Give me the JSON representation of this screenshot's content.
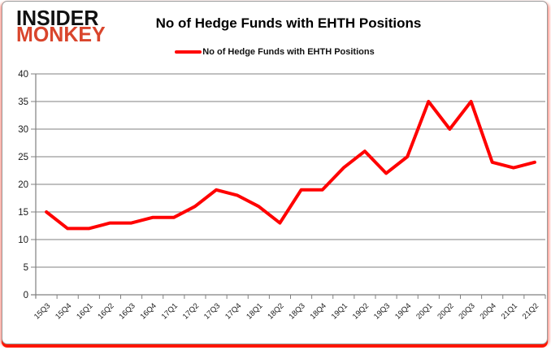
{
  "logo": {
    "line1": "INSIDER",
    "line2": "MONKEY",
    "line1_color": "#111111",
    "line2_color": "#d9452c"
  },
  "header": {
    "title": "No of Hedge Funds with EHTH Positions"
  },
  "legend": {
    "label": "No of Hedge Funds with EHTH Positions",
    "line_color": "#ff0000"
  },
  "chart_data": {
    "type": "line",
    "title": "No of Hedge Funds with EHTH Positions",
    "categories": [
      "15Q3",
      "15Q4",
      "16Q1",
      "16Q2",
      "16Q3",
      "16Q4",
      "17Q1",
      "17Q2",
      "17Q3",
      "17Q4",
      "18Q1",
      "18Q2",
      "18Q3",
      "18Q4",
      "19Q1",
      "19Q2",
      "19Q3",
      "19Q4",
      "20Q1",
      "20Q2",
      "20Q3",
      "20Q4",
      "21Q1",
      "21Q2"
    ],
    "series": [
      {
        "name": "No of Hedge Funds with EHTH Positions",
        "color": "#ff0000",
        "values": [
          15,
          12,
          12,
          13,
          13,
          14,
          14,
          16,
          19,
          18,
          16,
          13,
          19,
          19,
          23,
          26,
          22,
          25,
          35,
          30,
          35,
          24,
          23,
          24
        ]
      }
    ],
    "xlabel": "",
    "ylabel": "",
    "ylim": [
      0,
      40
    ],
    "ytick_step": 5,
    "grid": true,
    "legend_position": "top-center",
    "gridline_color": "#808080",
    "axis_color": "#808080",
    "tick_label_color": "#1a1a1a",
    "line_width": 4
  }
}
